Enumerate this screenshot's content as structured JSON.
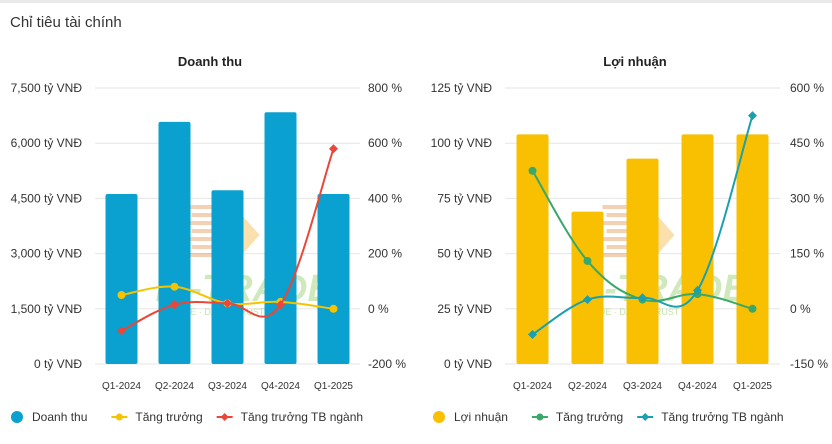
{
  "section_title": "Chỉ tiêu tài chính",
  "watermark": {
    "text": "FI-TRADE",
    "subtext": "VALUE · DATA · TRUST IN"
  },
  "chart_data": [
    {
      "type": "bar",
      "title": "Doanh thu",
      "categories": [
        "Q1-2024",
        "Q2-2024",
        "Q3-2024",
        "Q4-2024",
        "Q1-2025"
      ],
      "left_axis": {
        "min": 0,
        "max": 7500,
        "ticks": [
          0,
          1500,
          3000,
          4500,
          6000,
          7500
        ],
        "tick_labels": [
          "0 tỷ VNĐ",
          "1,500 tỷ VNĐ",
          "3,000 tỷ VNĐ",
          "4,500 tỷ VNĐ",
          "6,000 tỷ VNĐ",
          "7,500 tỷ VNĐ"
        ]
      },
      "right_axis": {
        "min": -200,
        "max": 800,
        "ticks": [
          -200,
          0,
          200,
          400,
          600,
          800
        ],
        "tick_labels": [
          "-200 %",
          "0 %",
          "200 %",
          "400 %",
          "600 %",
          "800 %"
        ]
      },
      "series": [
        {
          "name": "Doanh thu",
          "type": "bar",
          "axis": "left",
          "color": "#0aa0cf",
          "values": [
            4620,
            6580,
            4720,
            6840,
            4620
          ]
        },
        {
          "name": "Tăng trưởng",
          "type": "line",
          "axis": "right",
          "color": "#f5c400",
          "marker": "circle",
          "smooth": true,
          "values": [
            50,
            80,
            20,
            25,
            0
          ]
        },
        {
          "name": "Tăng trưởng TB ngành",
          "type": "line",
          "axis": "right",
          "color": "#e8473a",
          "marker": "diamond",
          "smooth": true,
          "values": [
            -80,
            15,
            20,
            15,
            580
          ]
        }
      ],
      "legend_position": "bottom"
    },
    {
      "type": "bar",
      "title": "Lợi nhuận",
      "categories": [
        "Q1-2024",
        "Q2-2024",
        "Q3-2024",
        "Q4-2024",
        "Q1-2025"
      ],
      "left_axis": {
        "min": 0,
        "max": 125,
        "ticks": [
          0,
          25,
          50,
          75,
          100,
          125
        ],
        "tick_labels": [
          "0 tỷ VNĐ",
          "25 tỷ VNĐ",
          "50 tỷ VNĐ",
          "75 tỷ VNĐ",
          "100 tỷ VNĐ",
          "125 tỷ VNĐ"
        ]
      },
      "right_axis": {
        "min": -150,
        "max": 600,
        "ticks": [
          -150,
          0,
          150,
          300,
          450,
          600
        ],
        "tick_labels": [
          "-150 %",
          "0 %",
          "150 %",
          "300 %",
          "450 %",
          "600 %"
        ]
      },
      "series": [
        {
          "name": "Lợi nhuận",
          "type": "bar",
          "axis": "left",
          "color": "#f8c000",
          "values": [
            104,
            69,
            93,
            104,
            104
          ]
        },
        {
          "name": "Tăng trưởng",
          "type": "line",
          "axis": "right",
          "color": "#3aa86a",
          "marker": "circle",
          "smooth": true,
          "values": [
            375,
            130,
            25,
            40,
            0
          ]
        },
        {
          "name": "Tăng trưởng TB ngành",
          "type": "line",
          "axis": "right",
          "color": "#1aa0b0",
          "marker": "diamond",
          "smooth": true,
          "values": [
            -70,
            25,
            30,
            50,
            525
          ]
        }
      ],
      "legend_position": "bottom"
    }
  ]
}
